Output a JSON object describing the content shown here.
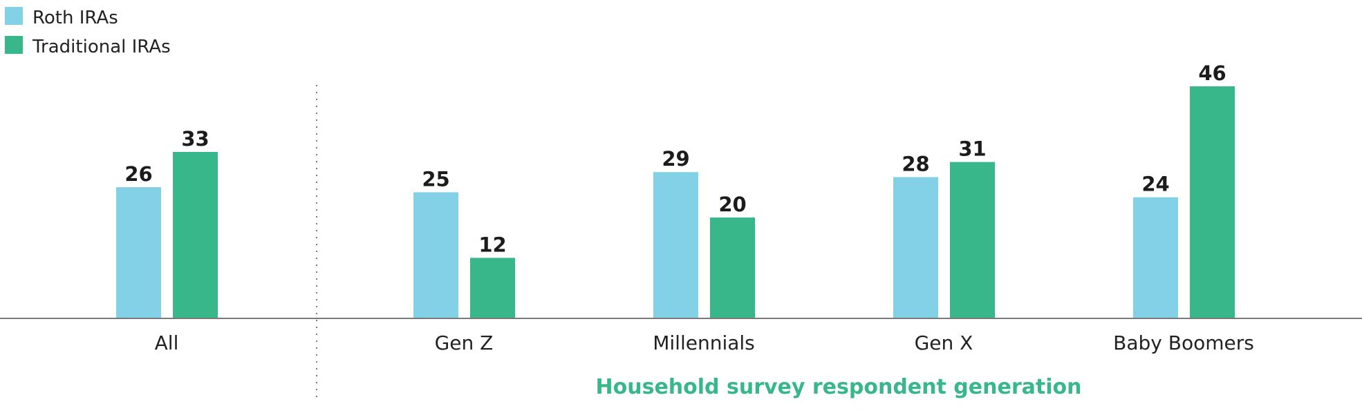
{
  "chart_data": {
    "type": "bar",
    "categories": [
      "All",
      "Gen Z",
      "Millennials",
      "Gen X",
      "Baby Boomers"
    ],
    "series": [
      {
        "name": "Roth IRAs",
        "color": "#82d1e6",
        "values": [
          26,
          25,
          29,
          28,
          24
        ]
      },
      {
        "name": "Traditional IRAs",
        "color": "#38b78a",
        "values": [
          33,
          12,
          20,
          31,
          46
        ]
      }
    ],
    "xlabel": "Household survey respondent generation",
    "xlabel_color": "#38b78a",
    "ylabel": "",
    "ylim": [
      0,
      46
    ],
    "grid": false,
    "legend": "top-left",
    "separator_after_category": "All",
    "axis_color": "#7a7a7a"
  }
}
